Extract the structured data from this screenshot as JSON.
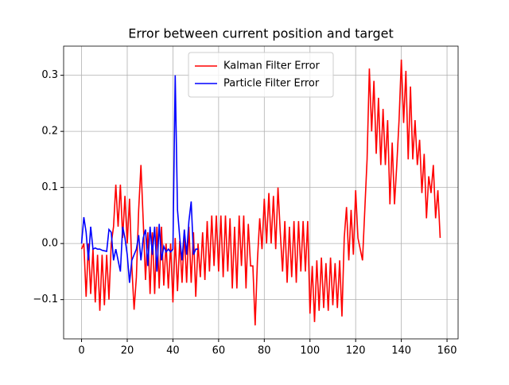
{
  "chart_data": {
    "type": "line",
    "title": "Error between current position and target",
    "xlim": [
      -7.85,
      164.85
    ],
    "ylim": [
      -0.17,
      0.352
    ],
    "xticks": [
      0,
      20,
      40,
      60,
      80,
      100,
      120,
      140,
      160
    ],
    "yticks": [
      {
        "value": -0.1,
        "label": "−0.1"
      },
      {
        "value": 0,
        "label": "0.0"
      },
      0.1,
      0.2,
      0.3
    ],
    "grid": true,
    "legend": "upper center",
    "series": [
      {
        "name": "Kalman Filter Error",
        "color": "#ff0000",
        "x": [
          0,
          1,
          2,
          3,
          4,
          5,
          6,
          7,
          8,
          9,
          10,
          11,
          12,
          13,
          14,
          15,
          16,
          17,
          18,
          19,
          20,
          21,
          22,
          23,
          24,
          25,
          26,
          27,
          28,
          29,
          30,
          31,
          32,
          33,
          34,
          35,
          36,
          37,
          38,
          39,
          40,
          41,
          42,
          43,
          44,
          45,
          46,
          47,
          48,
          49,
          50,
          51,
          52,
          53,
          54,
          55,
          56,
          57,
          58,
          59,
          60,
          61,
          62,
          63,
          64,
          65,
          66,
          67,
          68,
          69,
          70,
          71,
          72,
          73,
          74,
          75,
          76,
          77,
          78,
          79,
          80,
          81,
          82,
          83,
          84,
          85,
          86,
          87,
          88,
          89,
          90,
          91,
          92,
          93,
          94,
          95,
          96,
          97,
          98,
          99,
          100,
          101,
          102,
          103,
          104,
          105,
          106,
          107,
          108,
          109,
          110,
          111,
          112,
          113,
          114,
          115,
          116,
          117,
          118,
          119,
          120,
          121,
          122,
          123,
          124,
          125,
          126,
          127,
          128,
          129,
          130,
          131,
          132,
          133,
          134,
          135,
          136,
          137,
          138,
          139,
          140,
          141,
          142,
          143,
          144,
          145,
          146,
          147,
          148,
          149,
          150,
          151,
          152,
          153,
          154,
          155,
          156,
          157
        ],
        "values": [
          -0.01,
          0.0,
          -0.095,
          0.0,
          -0.09,
          -0.01,
          -0.105,
          -0.02,
          -0.12,
          -0.02,
          -0.11,
          -0.02,
          -0.1,
          0.0,
          0.03,
          0.105,
          0.03,
          0.105,
          0.01,
          0.085,
          0.0,
          0.08,
          -0.04,
          -0.118,
          -0.06,
          0.06,
          0.14,
          0.04,
          -0.065,
          0.02,
          -0.09,
          0.02,
          -0.09,
          0.03,
          -0.08,
          0.03,
          -0.075,
          0.0,
          -0.08,
          0.0,
          -0.105,
          0.01,
          -0.085,
          0.005,
          -0.07,
          0.02,
          -0.07,
          0.03,
          -0.07,
          0.02,
          -0.095,
          0.0,
          -0.06,
          0.02,
          -0.065,
          0.04,
          -0.05,
          0.05,
          -0.04,
          0.05,
          -0.05,
          0.05,
          -0.06,
          0.05,
          -0.05,
          0.045,
          -0.08,
          0.03,
          -0.08,
          0.05,
          -0.04,
          0.05,
          -0.08,
          0.035,
          -0.04,
          -0.04,
          -0.146,
          -0.03,
          0.045,
          -0.01,
          0.08,
          0.0,
          0.09,
          0.0,
          0.085,
          -0.01,
          0.1,
          0.02,
          -0.05,
          0.04,
          -0.07,
          0.03,
          -0.06,
          0.04,
          -0.07,
          0.04,
          -0.05,
          0.04,
          -0.05,
          0.04,
          -0.125,
          -0.04,
          -0.14,
          -0.03,
          -0.12,
          -0.025,
          -0.115,
          -0.035,
          -0.12,
          -0.025,
          -0.11,
          -0.035,
          -0.115,
          -0.03,
          -0.13,
          0.01,
          0.065,
          -0.03,
          0.06,
          -0.02,
          0.095,
          0.01,
          -0.01,
          -0.03,
          0.06,
          0.15,
          0.312,
          0.2,
          0.29,
          0.16,
          0.26,
          0.14,
          0.24,
          0.14,
          0.22,
          0.07,
          0.18,
          0.07,
          0.14,
          0.22,
          0.328,
          0.215,
          0.308,
          0.15,
          0.28,
          0.15,
          0.22,
          0.14,
          0.185,
          0.09,
          0.16,
          0.045,
          0.12,
          0.09,
          0.14,
          0.045,
          0.095,
          0.01
        ]
      },
      {
        "name": "Particle Filter Error",
        "color": "#0000ff",
        "x": [
          0,
          1,
          2,
          3,
          4,
          5,
          6,
          7,
          8,
          9,
          10,
          11,
          12,
          13,
          14,
          15,
          16,
          17,
          18,
          19,
          20,
          21,
          22,
          23,
          24,
          25,
          26,
          27,
          28,
          29,
          30,
          31,
          32,
          33,
          34,
          35,
          36,
          37,
          38,
          39,
          40,
          41,
          42,
          43,
          44,
          45,
          46,
          47,
          48,
          49,
          50,
          51
        ],
        "values": [
          0.0,
          0.047,
          0.02,
          -0.03,
          0.03,
          -0.01,
          -0.008,
          -0.01,
          -0.01,
          -0.012,
          -0.013,
          -0.014,
          0.025,
          0.02,
          -0.03,
          -0.01,
          -0.03,
          -0.05,
          0.03,
          0.01,
          -0.02,
          -0.07,
          -0.03,
          -0.02,
          -0.01,
          0.015,
          -0.03,
          0.01,
          0.025,
          -0.04,
          0.03,
          -0.02,
          0.03,
          -0.05,
          0.035,
          -0.03,
          -0.005,
          -0.015,
          -0.01,
          -0.015,
          -0.01,
          0.3,
          0.06,
          0.01,
          -0.03,
          0.025,
          -0.02,
          0.04,
          0.075,
          -0.02,
          -0.01,
          -0.01
        ]
      }
    ]
  }
}
